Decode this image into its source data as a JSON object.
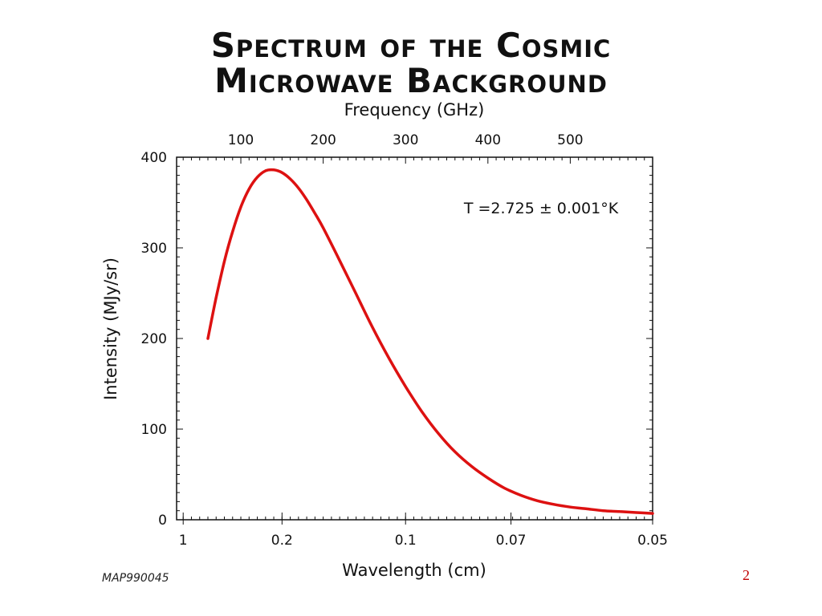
{
  "slide": {
    "title_line1": "Spectrum of the Cosmic",
    "title_line2": "Microwave Background",
    "credit": "MAP990045",
    "page_number": "2"
  },
  "chart_data": {
    "type": "line",
    "title": "Spectrum of the Cosmic Microwave Background",
    "xlabel": "Wavelength (cm)",
    "x2label": "Frequency (GHz)",
    "ylabel": "Intensity (MJy/sr)",
    "annotation": "T =2.725 ± 0.001°K",
    "x_axis_variable": "frequency_GHz",
    "xlim": [
      22,
      600
    ],
    "ylim": [
      0,
      400
    ],
    "y_ticks": [
      0,
      100,
      200,
      300,
      400
    ],
    "top_ticks": [
      {
        "value": 100,
        "label": "100"
      },
      {
        "value": 200,
        "label": "200"
      },
      {
        "value": 300,
        "label": "300"
      },
      {
        "value": 400,
        "label": "400"
      },
      {
        "value": 500,
        "label": "500"
      }
    ],
    "bottom_ticks": [
      {
        "value": 30,
        "label": "1"
      },
      {
        "value": 150,
        "label": "0.2"
      },
      {
        "value": 300,
        "label": "0.1"
      },
      {
        "value": 428,
        "label": "0.07"
      },
      {
        "value": 600,
        "label": "0.05"
      }
    ],
    "grid": false,
    "line_color": "#dd1111",
    "series": [
      {
        "x": [
          60,
          70,
          80,
          90,
          100,
          110,
          120,
          130,
          140,
          150,
          160,
          170,
          180,
          190,
          200,
          220,
          240,
          260,
          280,
          300,
          320,
          340,
          360,
          380,
          400,
          420,
          440,
          460,
          480,
          500,
          520,
          540,
          560,
          580,
          600
        ],
        "y": [
          200,
          245,
          285,
          318,
          345,
          365,
          378,
          385,
          386,
          383,
          376,
          366,
          353,
          338,
          322,
          286,
          249,
          212,
          178,
          147,
          119,
          95,
          75,
          59,
          46,
          35,
          27,
          21,
          17,
          14,
          12,
          10,
          9,
          8,
          7
        ]
      }
    ]
  }
}
